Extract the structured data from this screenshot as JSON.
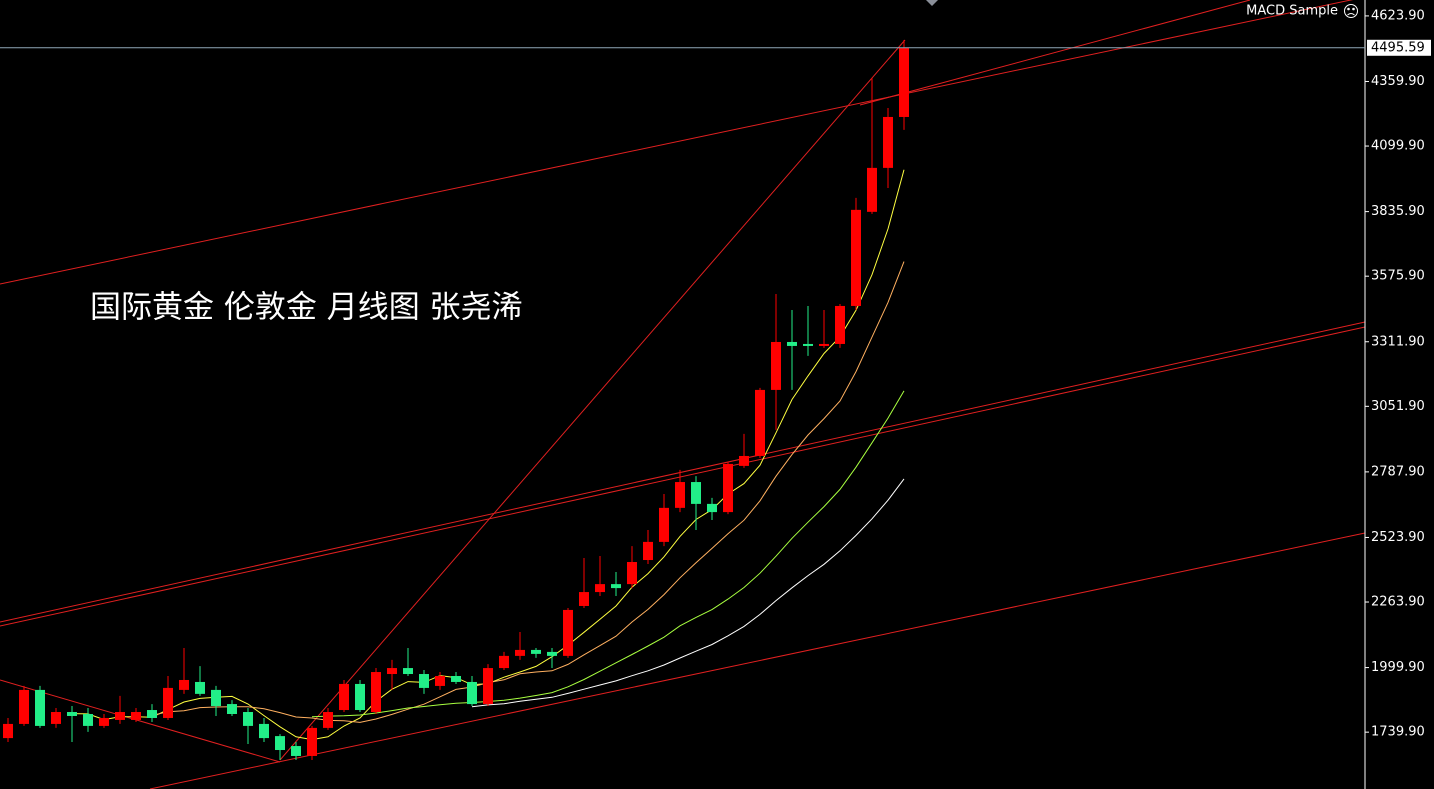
{
  "chart_data": {
    "type": "candlestick",
    "title": "国际黄金 伦敦金 月线图 张尧浠",
    "indicator": "MACD Sample",
    "up_color": "#ff0000",
    "down_color": "#22ee88",
    "ylim": [
      1511,
      4688
    ],
    "yticks": [
      {
        "value": 4623.9,
        "label": "4623.90"
      },
      {
        "value": 4359.9,
        "label": "4359.90"
      },
      {
        "value": 4099.9,
        "label": "4099.90"
      },
      {
        "value": 3835.9,
        "label": "3835.90"
      },
      {
        "value": 3575.9,
        "label": "3575.90"
      },
      {
        "value": 3311.9,
        "label": "3311.90"
      },
      {
        "value": 3051.9,
        "label": "3051.90"
      },
      {
        "value": 2787.9,
        "label": "2787.90"
      },
      {
        "value": 2523.9,
        "label": "2523.90"
      },
      {
        "value": 2263.9,
        "label": "2263.90"
      },
      {
        "value": 1999.9,
        "label": "1999.90"
      },
      {
        "value": 1739.9,
        "label": "1739.90"
      }
    ],
    "last_price": 4495.59,
    "open": [
      1716,
      1773,
      1910,
      1773,
      1821,
      1813,
      1765,
      1789,
      1789,
      1829,
      1797,
      1910,
      1942,
      1910,
      1853,
      1821,
      1773,
      1724,
      1684,
      1644,
      1757,
      1829,
      1934,
      1821,
      1974,
      1998,
      1974,
      1926,
      1966,
      1942,
      1853,
      1998,
      2047,
      2071,
      2063,
      2047,
      2248,
      2304,
      2336,
      2336,
      2433,
      2506,
      2643,
      2747,
      2659,
      2626,
      2812,
      2852,
      3118,
      3311,
      3303,
      3295,
      3303,
      3456,
      3835,
      4012,
      4217
    ],
    "high": [
      1797,
      1926,
      1926,
      1837,
      1845,
      1837,
      1813,
      1886,
      1837,
      1853,
      1966,
      2079,
      2006,
      1926,
      1869,
      1837,
      1797,
      1732,
      1700,
      1765,
      1837,
      1950,
      1950,
      1998,
      2031,
      2079,
      1990,
      1982,
      1982,
      1966,
      2014,
      2063,
      2143,
      2079,
      2079,
      2240,
      2441,
      2449,
      2385,
      2489,
      2554,
      2699,
      2796,
      2771,
      2683,
      2828,
      2941,
      3126,
      3504,
      3440,
      3456,
      3440,
      3464,
      3891,
      4374,
      4253,
      4527
    ],
    "low": [
      1700,
      1765,
      1757,
      1757,
      1700,
      1741,
      1757,
      1773,
      1781,
      1781,
      1789,
      1894,
      1886,
      1805,
      1805,
      1692,
      1700,
      1628,
      1628,
      1628,
      1749,
      1821,
      1821,
      1813,
      1910,
      1966,
      1894,
      1910,
      1934,
      1845,
      1845,
      1990,
      2031,
      2039,
      1998,
      2039,
      2240,
      2288,
      2288,
      2320,
      2417,
      2489,
      2626,
      2554,
      2594,
      2618,
      2804,
      2844,
      2957,
      3118,
      3255,
      3287,
      3287,
      3440,
      3827,
      3931,
      4165
    ],
    "close": [
      1773,
      1910,
      1765,
      1821,
      1805,
      1765,
      1797,
      1821,
      1821,
      1797,
      1918,
      1950,
      1894,
      1845,
      1813,
      1765,
      1716,
      1668,
      1644,
      1757,
      1821,
      1934,
      1829,
      1982,
      1998,
      1974,
      1918,
      1966,
      1942,
      1853,
      1998,
      2047,
      2071,
      2055,
      2047,
      2232,
      2304,
      2336,
      2320,
      2425,
      2506,
      2643,
      2747,
      2659,
      2626,
      2820,
      2852,
      3118,
      3311,
      3295,
      3295,
      3303,
      3456,
      3843,
      4012,
      4217,
      4495.59
    ]
  }
}
